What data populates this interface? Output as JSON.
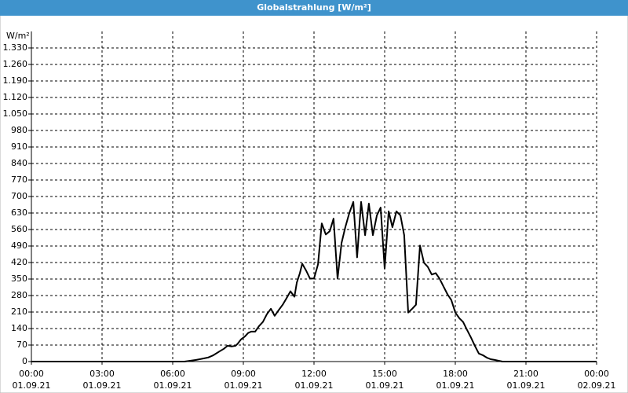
{
  "chart_data": {
    "type": "line",
    "title": "Globalstrahlung [W/m²]",
    "y_unit": "W/m²",
    "x": [
      0,
      6.5,
      7,
      7.5,
      7.73,
      8,
      8.17,
      8.33,
      8.5,
      8.67,
      8.77,
      8.9,
      9.07,
      9.2,
      9.33,
      9.5,
      9.67,
      9.83,
      10,
      10.17,
      10.33,
      10.5,
      10.67,
      10.83,
      11,
      11.17,
      11.27,
      11.4,
      11.5,
      11.67,
      11.83,
      12,
      12.17,
      12.33,
      12.5,
      12.67,
      12.83,
      13,
      13.17,
      13.33,
      13.5,
      13.67,
      13.83,
      14,
      14.17,
      14.33,
      14.5,
      14.67,
      14.83,
      15,
      15.17,
      15.33,
      15.5,
      15.67,
      15.83,
      16,
      16.17,
      16.33,
      16.5,
      16.67,
      16.83,
      17,
      17.17,
      17.33,
      17.5,
      17.67,
      17.83,
      18,
      18.17,
      18.33,
      18.5,
      18.67,
      18.83,
      19,
      19.17,
      19.33,
      19.5,
      19.67,
      20,
      24
    ],
    "series": [
      {
        "name": "Globalstrahlung",
        "color": "#000000",
        "values": [
          0,
          0,
          7,
          17,
          27,
          44,
          54,
          67,
          64,
          67,
          77,
          94,
          107,
          121,
          127,
          127,
          151,
          168,
          201,
          224,
          194,
          218,
          241,
          268,
          298,
          275,
          335,
          375,
          415,
          385,
          352,
          352,
          412,
          586,
          539,
          553,
          606,
          352,
          503,
          570,
          630,
          677,
          442,
          677,
          536,
          670,
          536,
          620,
          653,
          395,
          637,
          570,
          637,
          620,
          536,
          208,
          224,
          241,
          492,
          419,
          402,
          369,
          375,
          352,
          318,
          285,
          261,
          208,
          184,
          168,
          134,
          101,
          67,
          34,
          27,
          17,
          10,
          7,
          0,
          0
        ]
      }
    ],
    "xlim": [
      0,
      24
    ],
    "xticks": [
      {
        "value": 0,
        "label": "00:00",
        "date": "01.09.21"
      },
      {
        "value": 3,
        "label": "03:00",
        "date": "01.09.21"
      },
      {
        "value": 6,
        "label": "06:00",
        "date": "01.09.21"
      },
      {
        "value": 9,
        "label": "09:00",
        "date": "01.09.21"
      },
      {
        "value": 12,
        "label": "12:00",
        "date": "01.09.21"
      },
      {
        "value": 15,
        "label": "15:00",
        "date": "01.09.21"
      },
      {
        "value": 18,
        "label": "18:00",
        "date": "01.09.21"
      },
      {
        "value": 21,
        "label": "21:00",
        "date": "01.09.21"
      },
      {
        "value": 24,
        "label": "00:00",
        "date": "02.09.21"
      }
    ],
    "ylim": [
      0,
      1400
    ],
    "yticks": [
      0,
      70,
      140,
      210,
      280,
      350,
      420,
      490,
      560,
      630,
      700,
      770,
      840,
      910,
      980,
      {
        "value": 1050,
        "label": "1.050"
      },
      {
        "value": 1120,
        "label": "1.120"
      },
      {
        "value": 1190,
        "label": "1.190"
      },
      {
        "value": 1260,
        "label": "1.260"
      },
      {
        "value": 1330,
        "label": "1.330"
      }
    ],
    "grid": true
  }
}
